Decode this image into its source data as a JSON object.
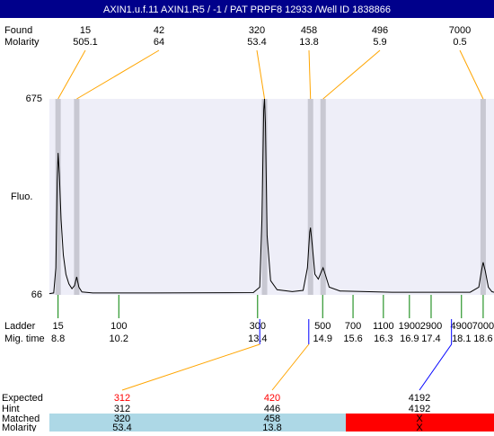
{
  "chart_data": {
    "type": "line",
    "title": "AXIN1.u.f.11  AXIN1.R5 / -1 / PAT PRPF8 12933 /Well ID 1838866",
    "y_label": "Fluo.",
    "ylim": [
      66,
      675
    ],
    "yticks": [
      66,
      675
    ],
    "xlim": [
      8.6,
      18.85
    ],
    "color": "#000000",
    "plot_background": "#eeeef8",
    "trace": {
      "x": [
        8.6,
        8.7,
        8.75,
        8.78,
        8.8,
        8.83,
        8.87,
        8.92,
        8.98,
        9.05,
        9.12,
        9.18,
        9.23,
        9.28,
        9.35,
        9.6,
        11,
        13.3,
        13.45,
        13.5,
        13.54,
        13.56,
        13.58,
        13.62,
        13.7,
        13.85,
        14.2,
        14.45,
        14.55,
        14.6,
        14.62,
        14.66,
        14.72,
        14.8,
        14.86,
        14.91,
        14.96,
        15.05,
        15.3,
        16.5,
        18.3,
        18.5,
        18.56,
        18.6,
        18.65,
        18.72,
        18.8,
        18.85
      ],
      "values": [
        70,
        72,
        150,
        420,
        507,
        440,
        300,
        190,
        130,
        100,
        85,
        95,
        122,
        90,
        75,
        72,
        72,
        73,
        90,
        300,
        640,
        675,
        600,
        250,
        110,
        82,
        76,
        80,
        150,
        260,
        275,
        220,
        130,
        115,
        135,
        150,
        130,
        90,
        78,
        74,
        74,
        90,
        140,
        167,
        140,
        90,
        76,
        74
      ]
    },
    "found": {
      "label": "Found",
      "molarity_label": "Molarity",
      "sizes": [
        15,
        42,
        320,
        458,
        496,
        7000
      ],
      "molarity": [
        505.1,
        64,
        53.4,
        13.8,
        5.9,
        0.5
      ],
      "times": [
        8.8,
        9.23,
        13.56,
        14.62,
        14.91,
        18.6
      ]
    },
    "ladder": {
      "label": "Ladder",
      "time_label": "Mig. time",
      "sizes": [
        15,
        100,
        300,
        500,
        700,
        1100,
        1900,
        2900,
        4900,
        7000
      ],
      "times": [
        8.8,
        10.2,
        13.4,
        14.9,
        15.6,
        16.3,
        16.9,
        17.4,
        18.1,
        18.6
      ]
    },
    "expected": {
      "label": "Expected",
      "hint_label": "Hint",
      "matched_label": "Matched",
      "molarity_label": "Molarity",
      "values": [
        312,
        420,
        4192
      ],
      "colors": [
        "#ff0000",
        "#ff0000",
        "#000000"
      ],
      "times": [
        13.45,
        14.58,
        17.87
      ],
      "hint": [
        312,
        446,
        4192
      ],
      "matched": [
        320,
        458,
        "X"
      ],
      "molarity": [
        53.4,
        13.8,
        "X"
      ],
      "row_colors": [
        "#add8e6",
        "#add8e6",
        "#ff0000"
      ]
    }
  }
}
